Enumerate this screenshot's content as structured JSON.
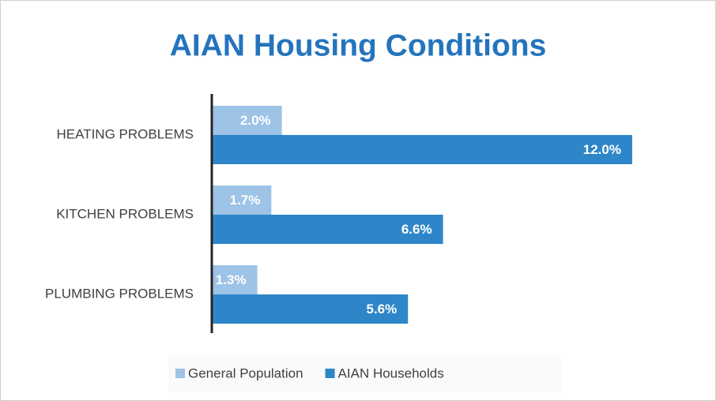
{
  "chart_data": {
    "type": "bar",
    "orientation": "horizontal",
    "title": "AIAN Housing Conditions",
    "categories": [
      "HEATING PROBLEMS",
      "KITCHEN PROBLEMS",
      "PLUMBING PROBLEMS"
    ],
    "series": [
      {
        "name": "General Population",
        "color": "#9dc3e6",
        "values": [
          2.0,
          1.7,
          1.3
        ],
        "value_labels": [
          "2.0%",
          "1.7%",
          "1.3%"
        ]
      },
      {
        "name": "AIAN Households",
        "color": "#2e86c8",
        "values": [
          12.0,
          6.6,
          5.6
        ],
        "value_labels": [
          "12.0%",
          "6.6%",
          "5.6%"
        ]
      }
    ],
    "legend": "bottom"
  }
}
